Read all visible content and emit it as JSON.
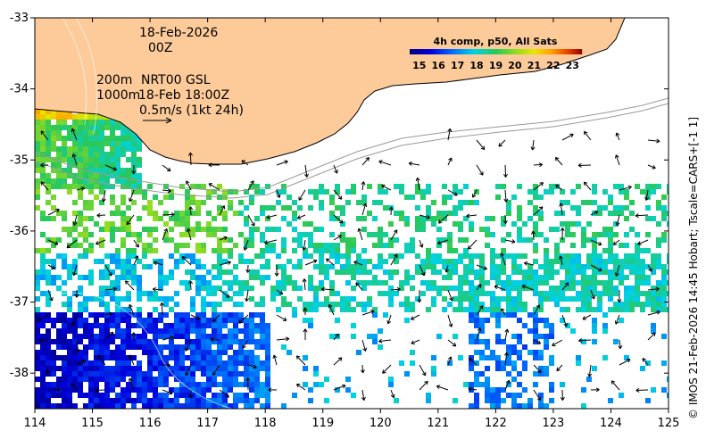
{
  "map": {
    "date_line1": "18-Feb-2026",
    "date_line2": "00Z",
    "depth_200": "200m",
    "depth_1000": "1000m",
    "current_source": "NRT00 GSL",
    "current_time": "18-Feb 18:00Z",
    "vector_scale": "0.5m/s (1kt 24h)",
    "attribution": "© IMOS 21-Feb-2026 14:45 Hobart; Tscale=CARS+[-1 1]",
    "x_ticks": [
      "114",
      "115",
      "116",
      "117",
      "118",
      "119",
      "120",
      "121",
      "122",
      "123",
      "124",
      "125"
    ],
    "y_ticks": [
      "-33",
      "-34",
      "-35",
      "-36",
      "-37",
      "-38"
    ],
    "x_range": [
      114,
      125
    ],
    "y_range": [
      -38.5,
      -33
    ]
  },
  "colorbar": {
    "title": "4h comp, p50, All Sats",
    "labels": [
      "15",
      "16",
      "17",
      "18",
      "19",
      "20",
      "21",
      "22",
      "23"
    ],
    "range": [
      14.5,
      23.5
    ]
  },
  "colors": {
    "land": "#fdcb9a",
    "coast": "#000000",
    "isobath": "#9a9a9a"
  }
}
